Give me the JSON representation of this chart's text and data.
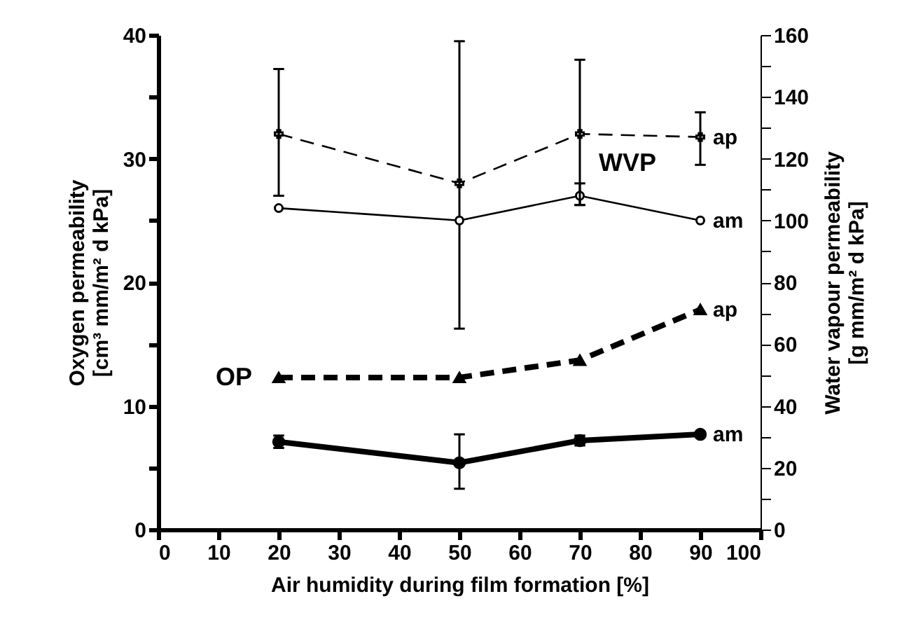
{
  "chart_data": {
    "type": "line",
    "xlabel": "Air humidity during film formation  [%]",
    "ylabel": "Oxygen permeability\n[cm³ mm/m² d kPa]",
    "y2label": "Water vapour permeability\n[g mm/m² d kPa]",
    "x": [
      20,
      50,
      70,
      90
    ],
    "xlim": [
      0,
      100
    ],
    "xticks": [
      0,
      10,
      20,
      30,
      40,
      50,
      60,
      70,
      80,
      90,
      100
    ],
    "ylim": [
      0,
      40
    ],
    "yticks": [
      0,
      {
        "value": 5,
        "label": null
      },
      10,
      {
        "value": 15,
        "label": null
      },
      20,
      {
        "value": 25,
        "label": null
      },
      30,
      {
        "value": 35,
        "label": null
      },
      40
    ],
    "y2lim": [
      0,
      160
    ],
    "y2ticks": [
      0,
      {
        "value": 10,
        "label": null
      },
      20,
      {
        "value": 30,
        "label": null
      },
      40,
      {
        "value": 50,
        "label": null
      },
      60,
      {
        "value": 70,
        "label": null
      },
      80,
      {
        "value": 90,
        "label": null
      },
      100,
      {
        "value": 110,
        "label": null
      },
      120,
      {
        "value": 130,
        "label": null
      },
      140,
      {
        "value": 150,
        "label": null
      },
      160
    ],
    "grid": false,
    "series": [
      {
        "name": "ap",
        "color": "#000000",
        "values": [
          12.3,
          12.3,
          13.7,
          17.8
        ],
        "marker": "triangle",
        "line_style": "dashed"
      },
      {
        "name": "am",
        "color": "#000000",
        "values": [
          7.1,
          5.4,
          7.2,
          7.7
        ],
        "errors": [
          [
            6.6,
            7.6
          ],
          [
            3.3,
            7.7
          ],
          [
            6.8,
            7.6
          ],
          null
        ],
        "marker": "circle",
        "line_style": "solid"
      },
      {
        "name": "ap",
        "color": "#000000",
        "axis": "y2",
        "values": [
          128,
          112,
          128,
          127
        ],
        "errors": [
          [
            108,
            149
          ],
          [
            65,
            158
          ],
          [
            105,
            152
          ],
          [
            118,
            135
          ]
        ],
        "marker": "cross",
        "line_style": "dashed"
      },
      {
        "name": "am",
        "color": "#000000",
        "axis": "y2",
        "values": [
          104,
          100,
          108,
          100
        ],
        "errors": [
          null,
          null,
          [
            105,
            112
          ],
          null
        ],
        "marker": "circle",
        "line_style": "solid"
      }
    ],
    "annotations": [
      "WVP",
      "OP"
    ]
  }
}
